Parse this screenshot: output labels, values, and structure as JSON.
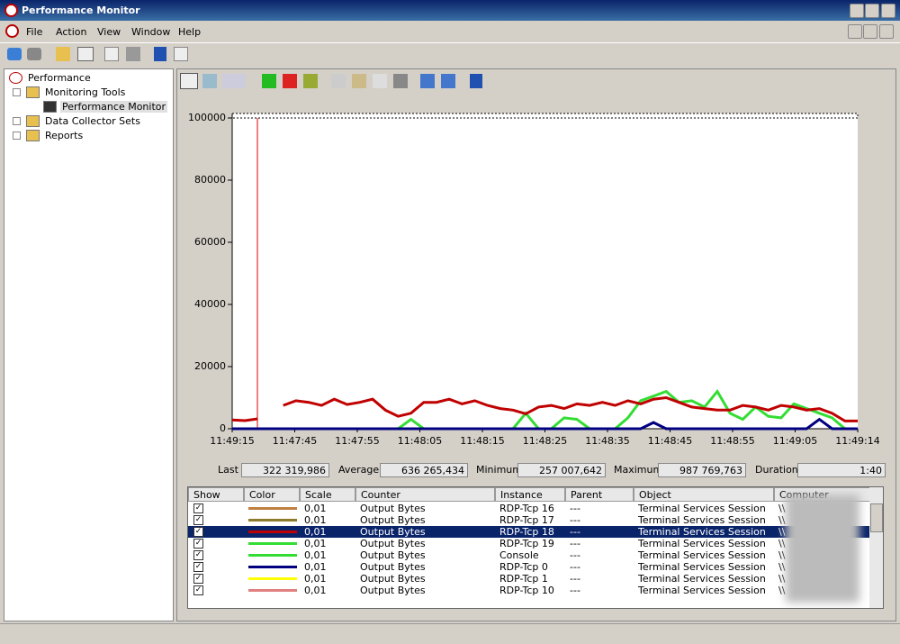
{
  "window": {
    "title": "Performance Monitor"
  },
  "menu": [
    "File",
    "Action",
    "View",
    "Window",
    "Help"
  ],
  "tree": [
    "Performance",
    "Monitoring Tools",
    "Performance Monitor",
    "Data Collector Sets",
    "Reports"
  ],
  "chart": {
    "type": "line",
    "ylim": [
      0,
      100000
    ],
    "yticks": [
      0,
      20000,
      40000,
      60000,
      80000,
      100000
    ],
    "xlabels": [
      "11:49:15",
      "11:47:45",
      "11:47:55",
      "11:48:05",
      "11:48:15",
      "11:48:25",
      "11:48:35",
      "11:48:45",
      "11:48:55",
      "11:49:05",
      "11:49:14"
    ],
    "series": [
      {
        "color": "#c00000",
        "values": [
          2800,
          2600,
          3200,
          null,
          7500,
          9000,
          8500,
          7500,
          9500,
          7800,
          8500,
          9500,
          6000,
          4000,
          5000,
          8500,
          8500,
          9500,
          8000,
          9000,
          7500,
          6500,
          6000,
          4800,
          7000,
          7500,
          6500,
          8000,
          7500,
          8500,
          7500,
          9000,
          8000,
          9500,
          10000,
          8500,
          7000,
          6500,
          6000,
          6000,
          7500,
          7000,
          6000,
          7500,
          7000,
          6000,
          6500,
          5000,
          2500,
          2500
        ]
      },
      {
        "color": "#33dd33",
        "values": [
          0,
          0,
          0,
          0,
          0,
          0,
          0,
          0,
          0,
          0,
          0,
          0,
          0,
          0,
          3000,
          0,
          0,
          0,
          0,
          0,
          0,
          0,
          0,
          5000,
          0,
          0,
          3500,
          3000,
          0,
          0,
          0,
          3500,
          9000,
          10500,
          12000,
          8500,
          9000,
          7000,
          12000,
          5000,
          3000,
          7000,
          4000,
          3500,
          8000,
          6500,
          5000,
          3500,
          0,
          0
        ]
      },
      {
        "color": "#000080",
        "values": [
          0,
          0,
          0,
          0,
          0,
          0,
          0,
          0,
          0,
          0,
          0,
          0,
          0,
          0,
          0,
          0,
          0,
          0,
          0,
          0,
          0,
          0,
          0,
          0,
          0,
          0,
          0,
          0,
          0,
          0,
          0,
          0,
          0,
          2000,
          0,
          0,
          0,
          0,
          0,
          0,
          0,
          0,
          0,
          0,
          0,
          0,
          3000,
          0,
          0,
          0
        ]
      }
    ]
  },
  "stats": [
    {
      "label": "Last",
      "value": "322 319,986"
    },
    {
      "label": "Average",
      "value": "636 265,434"
    },
    {
      "label": "Minimum",
      "value": "257 007,642"
    },
    {
      "label": "Maximum",
      "value": "987 769,763"
    },
    {
      "label": "Duration",
      "value": "1:40"
    }
  ],
  "table": {
    "columns": [
      "Show",
      "Color",
      "Scale",
      "Counter",
      "Instance",
      "Parent",
      "Object",
      "Computer"
    ],
    "selected_row": 2,
    "rows": [
      {
        "color": "#c08040",
        "scale": "0,01",
        "counter": "Output Bytes",
        "instance": "RDP-Tcp 16",
        "parent": "---",
        "object": "Terminal Services Session",
        "computer": "\\\\"
      },
      {
        "color": "#8b7b2a",
        "scale": "0,01",
        "counter": "Output Bytes",
        "instance": "RDP-Tcp 17",
        "parent": "---",
        "object": "Terminal Services Session",
        "computer": "\\\\"
      },
      {
        "color": "#c00000",
        "scale": "0,01",
        "counter": "Output Bytes",
        "instance": "RDP-Tcp 18",
        "parent": "---",
        "object": "Terminal Services Session",
        "computer": "\\\\"
      },
      {
        "color": "#33dd33",
        "scale": "0,01",
        "counter": "Output Bytes",
        "instance": "RDP-Tcp 19",
        "parent": "---",
        "object": "Terminal Services Session",
        "computer": "\\\\"
      },
      {
        "color": "#33dd33",
        "scale": "0,01",
        "counter": "Output Bytes",
        "instance": "Console",
        "parent": "---",
        "object": "Terminal Services Session",
        "computer": "\\\\"
      },
      {
        "color": "#000080",
        "scale": "0,01",
        "counter": "Output Bytes",
        "instance": "RDP-Tcp 0",
        "parent": "---",
        "object": "Terminal Services Session",
        "computer": "\\\\"
      },
      {
        "color": "#ffff00",
        "scale": "0,01",
        "counter": "Output Bytes",
        "instance": "RDP-Tcp 1",
        "parent": "---",
        "object": "Terminal Services Session",
        "computer": "\\\\"
      },
      {
        "color": "#e08080",
        "scale": "0,01",
        "counter": "Output Bytes",
        "instance": "RDP-Tcp 10",
        "parent": "---",
        "object": "Terminal Services Session",
        "computer": "\\\\"
      }
    ]
  }
}
